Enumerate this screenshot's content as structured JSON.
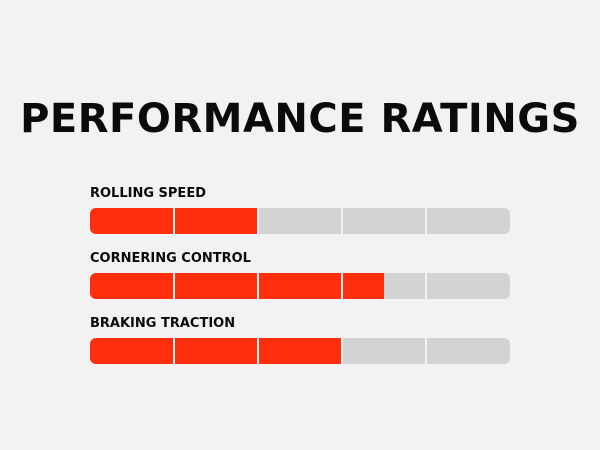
{
  "page": {
    "title": "PERFORMANCE RATINGS"
  },
  "colors": {
    "background": "#f2f2f2",
    "filled": "#ff2e0d",
    "empty": "#d4d2d2",
    "text": "#0b0b0b"
  },
  "segments_per_bar": 5,
  "ratings": [
    {
      "label": "ROLLING SPEED",
      "value": 2
    },
    {
      "label": "CORNERING CONTROL",
      "value": 3.5
    },
    {
      "label": "BRAKING TRACTION",
      "value": 3
    }
  ]
}
